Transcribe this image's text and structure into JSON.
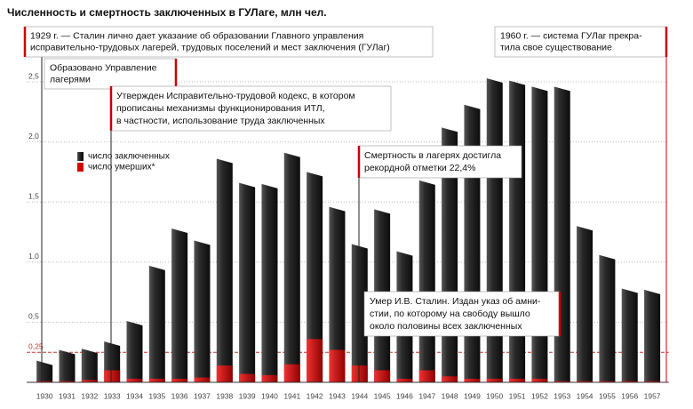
{
  "chart_data": {
    "type": "bar",
    "title": "Численность и смертность заключенных в ГУЛаге, млн чел.",
    "categories": [
      "1930",
      "1931",
      "1932",
      "1933",
      "1934",
      "1935",
      "1936",
      "1937",
      "1938",
      "1939",
      "1940",
      "1941",
      "1942",
      "1943",
      "1944",
      "1945",
      "1946",
      "1947",
      "1948",
      "1949",
      "1950",
      "1951",
      "1952",
      "1953",
      "1954",
      "1955",
      "1956",
      "1957"
    ],
    "series": [
      {
        "name": "число заключенных",
        "color": "#1e1e1e",
        "values": [
          0.18,
          0.27,
          0.28,
          0.34,
          0.51,
          0.97,
          1.28,
          1.18,
          1.86,
          1.66,
          1.65,
          1.91,
          1.75,
          1.46,
          1.15,
          1.44,
          1.09,
          1.68,
          2.12,
          2.31,
          2.53,
          2.51,
          2.46,
          2.46,
          1.3,
          1.06,
          0.78,
          0.77
        ]
      },
      {
        "name": "число умерших*",
        "color": "#d40000",
        "values": [
          0.01,
          0.01,
          0.02,
          0.1,
          0.03,
          0.03,
          0.03,
          0.04,
          0.14,
          0.07,
          0.06,
          0.15,
          0.36,
          0.27,
          0.14,
          0.1,
          0.03,
          0.1,
          0.05,
          0.03,
          0.03,
          0.03,
          0.03,
          0.01,
          0.01,
          0.01,
          0.01,
          0.01
        ]
      }
    ],
    "ylim": [
      0,
      2.6
    ],
    "yticks": [
      {
        "value": 0.5,
        "label": "0,5"
      },
      {
        "value": 1.0,
        "label": "1,0"
      },
      {
        "value": 1.5,
        "label": "1,5"
      },
      {
        "value": 2.0,
        "label": "2,0"
      },
      {
        "value": 2.5,
        "label": "2,5"
      }
    ],
    "reference_line": {
      "value": 0.25,
      "label": "0,25",
      "color": "#c0392b"
    },
    "grid": true,
    "annotations": [
      {
        "lines": [
          "1929 г. — Сталин лично дает указание об образовании Главного управления",
          "исправительно-трудовых лагерей, трудовых поселений и мест заключения (ГУЛаг)"
        ]
      },
      {
        "lines": [
          "Образовано Управление",
          "лагерями"
        ]
      },
      {
        "lines": [
          "Утвержден Исправительно-трудовой кодекс, в котором",
          "прописаны механизмы функционирования ИТЛ,",
          "в частности, использование труда заключенных"
        ]
      },
      {
        "lines": [
          "Смертность в лагерях достигла",
          "рекордной отметки 22,4%"
        ]
      },
      {
        "lines": [
          "Умер И.В. Сталин. Издан указ об амни-",
          "стии, по которому на свободу вышло",
          "около половины всех заключенных"
        ]
      },
      {
        "lines": [
          "1960 г. — система ГУЛаг прекра-",
          "тила свое существование"
        ]
      }
    ]
  }
}
